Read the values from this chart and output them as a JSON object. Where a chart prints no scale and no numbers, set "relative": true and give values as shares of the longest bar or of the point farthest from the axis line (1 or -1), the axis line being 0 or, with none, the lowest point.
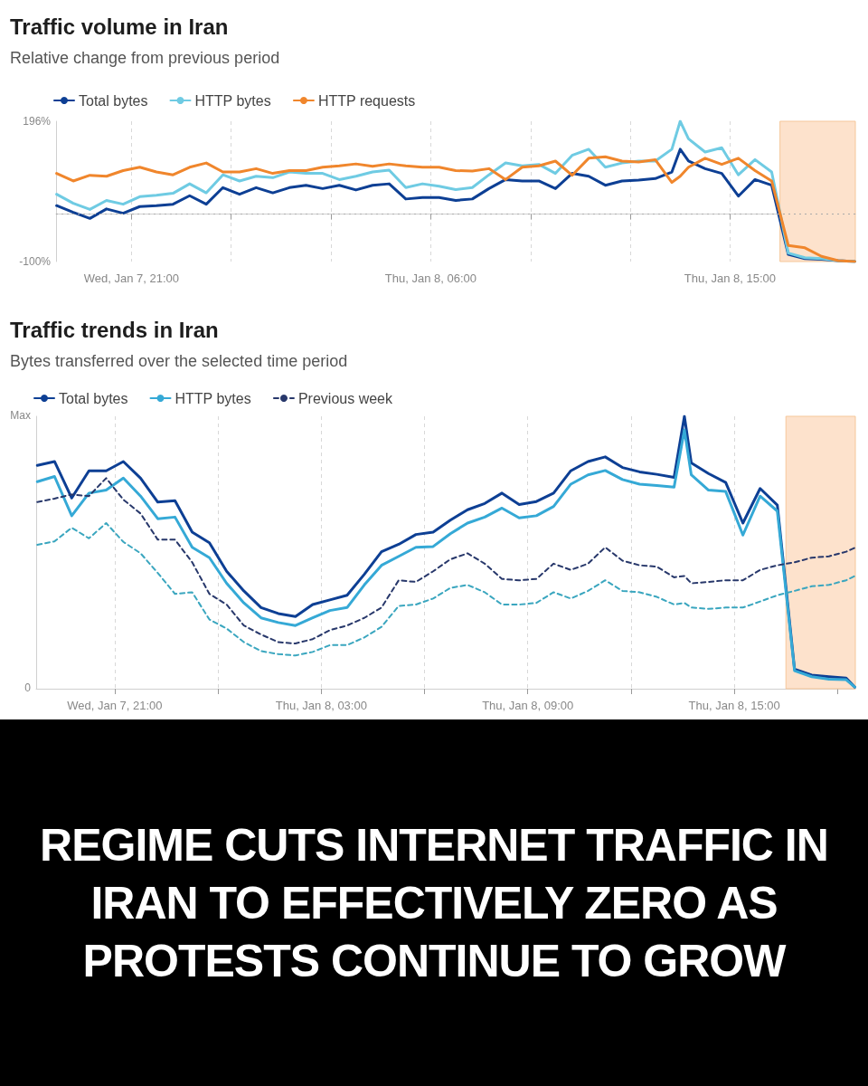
{
  "chart_data": [
    {
      "type": "line",
      "title": "Traffic volume in Iran",
      "subtitle": "Relative change from previous period",
      "x": [
        "--01-07T18:45",
        "--01-07T19:15",
        "--01-07T19:45",
        "--01-07T20:15",
        "--01-07T20:45",
        "--01-07T21:15",
        "--01-07T21:45",
        "--01-07T22:15",
        "--01-07T22:45",
        "--01-07T23:15",
        "--01-07T23:45",
        "--01-08T00:15",
        "--01-08T00:45",
        "--01-08T01:15",
        "--01-08T01:45",
        "--01-08T02:15",
        "--01-08T02:45",
        "--01-08T03:15",
        "--01-08T03:45",
        "--01-08T04:15",
        "--01-08T04:45",
        "--01-08T05:15",
        "--01-08T05:45",
        "--01-08T06:15",
        "--01-08T06:45",
        "--01-08T07:15",
        "--01-08T07:45",
        "--01-08T08:15",
        "--01-08T08:45",
        "--01-08T09:15",
        "--01-08T09:45",
        "--01-08T10:15",
        "--01-08T10:45",
        "--01-08T11:15",
        "--01-08T11:45",
        "--01-08T12:15",
        "--01-08T12:45",
        "--01-08T13:15",
        "--01-08T13:30",
        "--01-08T13:45",
        "--01-08T14:15",
        "--01-08T14:45",
        "--01-08T15:15",
        "--01-08T15:45",
        "--01-08T16:15",
        "--01-08T16:45",
        "--01-08T17:15",
        "--01-08T17:45",
        "--01-08T18:15",
        "--01-08T18:45"
      ],
      "series": [
        {
          "name": "Total bytes",
          "color": "#0d3f94",
          "values": [
            18,
            4,
            -9,
            11,
            2,
            16,
            18,
            21,
            39,
            21,
            56,
            42,
            56,
            45,
            56,
            61,
            54,
            61,
            51,
            61,
            64,
            32,
            35,
            35,
            29,
            32,
            54,
            73,
            70,
            70,
            54,
            86,
            80,
            61,
            70,
            72,
            75,
            89,
            137,
            112,
            96,
            86,
            38,
            73,
            61,
            -85,
            -94,
            -95,
            -98,
            -100
          ]
        },
        {
          "name": "HTTP bytes",
          "color": "#6fcbe3",
          "values": [
            42,
            23,
            10,
            29,
            21,
            37,
            40,
            44,
            64,
            45,
            83,
            70,
            80,
            77,
            89,
            86,
            86,
            73,
            80,
            89,
            93,
            56,
            64,
            59,
            52,
            56,
            83,
            108,
            102,
            105,
            86,
            124,
            137,
            99,
            108,
            112,
            112,
            137,
            196,
            159,
            131,
            140,
            83,
            115,
            89,
            -82,
            -92,
            -94,
            -98,
            -100
          ]
        },
        {
          "name": "HTTP requests",
          "color": "#f0862c",
          "values": [
            86,
            70,
            82,
            80,
            92,
            99,
            89,
            83,
            99,
            108,
            89,
            89,
            96,
            86,
            92,
            92,
            99,
            102,
            106,
            101,
            106,
            102,
            99,
            99,
            92,
            91,
            96,
            73,
            99,
            102,
            112,
            82,
            118,
            121,
            112,
            110,
            115,
            67,
            80,
            99,
            118,
            105,
            118,
            92,
            70,
            -66,
            -71,
            -89,
            -98,
            -100
          ]
        }
      ],
      "xlim": [
        "--01-07T18:44",
        "--01-08T18:46"
      ],
      "xticks": [
        {
          "value": "--01-07T21:00",
          "label": "Wed, Jan 7, 21:00"
        },
        {
          "value": "--01-08T00:00",
          "label": null
        },
        {
          "value": "--01-08T03:00",
          "label": null
        },
        {
          "value": "--01-08T06:00",
          "label": "Thu, Jan 8, 06:00"
        },
        {
          "value": "--01-08T09:00",
          "label": null
        },
        {
          "value": "--01-08T12:00",
          "label": null
        },
        {
          "value": "--01-08T15:00",
          "label": "Thu, Jan 8, 15:00"
        },
        {
          "value": "--01-08T18:00",
          "label": null
        }
      ],
      "ylim": [
        -100,
        196
      ],
      "yticks": [
        {
          "value": -100,
          "label": "-100%"
        },
        {
          "value": 196,
          "label": "196%"
        }
      ],
      "ref_lines": [
        {
          "axis": "y",
          "value": 0,
          "line_style": "dotted",
          "color": "#aaaaaa"
        }
      ],
      "bands": [
        {
          "axis": "x",
          "from": "--01-08T16:30",
          "to": "--01-08T18:46",
          "color": "#fde2cc"
        }
      ],
      "grid": "x",
      "legend": "top left",
      "marker": "none",
      "line_style": "solid"
    },
    {
      "type": "line",
      "title": "Traffic trends in Iran",
      "subtitle": "Bytes transferred over the selected time period",
      "relative": true,
      "annotations": [
        "Max",
        "0"
      ],
      "x": [
        "--01-07T18:45",
        "--01-07T19:15",
        "--01-07T19:45",
        "--01-07T20:15",
        "--01-07T20:45",
        "--01-07T21:15",
        "--01-07T21:45",
        "--01-07T22:15",
        "--01-07T22:45",
        "--01-07T23:15",
        "--01-07T23:45",
        "--01-08T00:15",
        "--01-08T00:45",
        "--01-08T01:15",
        "--01-08T01:45",
        "--01-08T02:15",
        "--01-08T02:45",
        "--01-08T03:15",
        "--01-08T03:45",
        "--01-08T04:15",
        "--01-08T04:45",
        "--01-08T05:15",
        "--01-08T05:45",
        "--01-08T06:15",
        "--01-08T06:45",
        "--01-08T07:15",
        "--01-08T07:45",
        "--01-08T08:15",
        "--01-08T08:45",
        "--01-08T09:15",
        "--01-08T09:45",
        "--01-08T10:15",
        "--01-08T10:45",
        "--01-08T11:15",
        "--01-08T11:45",
        "--01-08T12:15",
        "--01-08T12:45",
        "--01-08T13:15",
        "--01-08T13:33",
        "--01-08T13:45",
        "--01-08T14:15",
        "--01-08T14:45",
        "--01-08T15:15",
        "--01-08T15:45",
        "--01-08T16:15",
        "--01-08T16:45",
        "--01-08T17:15",
        "--01-08T17:45",
        "--01-08T18:15",
        "--01-08T18:30"
      ],
      "series": [
        {
          "name": "Total bytes",
          "color": "#0d3f94",
          "values": [
            0.82,
            0.834,
            0.7,
            0.8,
            0.8,
            0.834,
            0.773,
            0.685,
            0.69,
            0.575,
            0.536,
            0.431,
            0.359,
            0.298,
            0.276,
            0.265,
            0.309,
            0.326,
            0.343,
            0.42,
            0.503,
            0.53,
            0.566,
            0.575,
            0.619,
            0.657,
            0.68,
            0.718,
            0.676,
            0.687,
            0.718,
            0.8,
            0.834,
            0.851,
            0.812,
            0.796,
            0.787,
            0.776,
            1.0,
            0.829,
            0.79,
            0.757,
            0.608,
            0.735,
            0.674,
            0.072,
            0.05,
            0.044,
            0.039,
            0.006
          ]
        },
        {
          "name": "HTTP bytes",
          "color": "#35a9d6",
          "values": [
            0.76,
            0.779,
            0.635,
            0.718,
            0.729,
            0.773,
            0.707,
            0.624,
            0.63,
            0.519,
            0.481,
            0.387,
            0.315,
            0.26,
            0.243,
            0.232,
            0.26,
            0.287,
            0.298,
            0.381,
            0.453,
            0.486,
            0.519,
            0.522,
            0.569,
            0.608,
            0.63,
            0.663,
            0.627,
            0.635,
            0.669,
            0.751,
            0.785,
            0.801,
            0.768,
            0.751,
            0.746,
            0.74,
            0.95,
            0.785,
            0.729,
            0.724,
            0.564,
            0.707,
            0.652,
            0.066,
            0.044,
            0.035,
            0.033,
            0.006
          ]
        },
        {
          "name": "Previous week",
          "color": "#28386b",
          "line_style": "dashed",
          "values": [
            0.685,
            0.698,
            0.713,
            0.707,
            0.773,
            0.694,
            0.643,
            0.547,
            0.547,
            0.464,
            0.348,
            0.309,
            0.232,
            0.199,
            0.171,
            0.166,
            0.182,
            0.215,
            0.232,
            0.26,
            0.298,
            0.398,
            0.392,
            0.431,
            0.475,
            0.497,
            0.459,
            0.403,
            0.398,
            0.403,
            0.459,
            0.436,
            0.459,
            0.519,
            0.47,
            0.453,
            0.448,
            0.409,
            0.414,
            0.387,
            0.392,
            0.398,
            0.398,
            0.436,
            0.453,
            0.464,
            0.481,
            0.486,
            0.503,
            0.517
          ]
        },
        {
          "color": "#3aa6bf",
          "line_style": "dashed",
          "values": [
            0.528,
            0.541,
            0.591,
            0.552,
            0.608,
            0.539,
            0.497,
            0.425,
            0.348,
            0.354,
            0.254,
            0.221,
            0.171,
            0.138,
            0.127,
            0.122,
            0.135,
            0.16,
            0.16,
            0.188,
            0.227,
            0.304,
            0.309,
            0.331,
            0.37,
            0.381,
            0.354,
            0.309,
            0.309,
            0.315,
            0.354,
            0.331,
            0.359,
            0.398,
            0.359,
            0.354,
            0.337,
            0.309,
            0.315,
            0.298,
            0.293,
            0.298,
            0.298,
            0.32,
            0.343,
            0.359,
            0.376,
            0.381,
            0.398,
            0.414
          ]
        }
      ],
      "xlim": [
        "--01-07T18:43",
        "--01-08T18:31"
      ],
      "xticks": [
        {
          "value": "--01-07T21:00",
          "label": "Wed, Jan 7, 21:00"
        },
        {
          "value": "--01-08T00:00",
          "label": null
        },
        {
          "value": "--01-08T03:00",
          "label": "Thu, Jan 8, 03:00"
        },
        {
          "value": "--01-08T06:00",
          "label": null
        },
        {
          "value": "--01-08T09:00",
          "label": "Thu, Jan 8, 09:00"
        },
        {
          "value": "--01-08T12:00",
          "label": null
        },
        {
          "value": "--01-08T15:00",
          "label": "Thu, Jan 8, 15:00"
        },
        {
          "value": "--01-08T18:00",
          "label": null
        }
      ],
      "bands": [
        {
          "axis": "x",
          "from": "--01-08T16:30",
          "to": "--01-08T18:31",
          "color": "#fde2cc"
        }
      ],
      "grid": "x",
      "legend": "top left",
      "marker": "none",
      "line_style": "solid"
    },
    {
      "type": "other",
      "title": "REGIME CUTS INTERNET TRAFFIC IN IRAN TO EFFECTIVELY ZERO AS PROTESTS CONTINUE TO GROW"
    }
  ]
}
